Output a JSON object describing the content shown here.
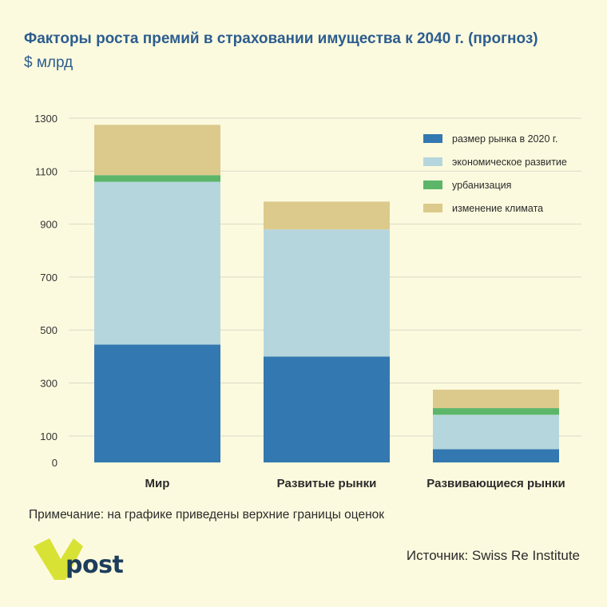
{
  "header": {
    "title": "Факторы роста премий в страховании имущества к 2040 г. (прогноз)",
    "subtitle": "$ млрд"
  },
  "colors": {
    "background": "#fcfade",
    "title": "#2c5d8f",
    "grid": "#d9d9c8"
  },
  "chart_data": {
    "type": "bar",
    "stacked": true,
    "categories": [
      "Мир",
      "Развитые рынки",
      "Развивающиеся рынки"
    ],
    "series": [
      {
        "name": "размер рынка в 2020 г.",
        "color": "#3378b1",
        "values": [
          445,
          400,
          50
        ]
      },
      {
        "name": "экономическое развитие",
        "color": "#b5d6dd",
        "values": [
          615,
          480,
          130
        ]
      },
      {
        "name": "урбанизация",
        "color": "#5cb66a",
        "values": [
          25,
          0,
          25
        ]
      },
      {
        "name": "изменение климата",
        "color": "#dcca8c",
        "values": [
          190,
          105,
          70
        ]
      }
    ],
    "yticks": [
      0,
      100,
      300,
      500,
      700,
      900,
      1100,
      1300
    ],
    "ylim": [
      0,
      1300
    ],
    "grid": true,
    "legend_position": "top-right"
  },
  "footer": {
    "note": "Примечание: на графике приведены верхние границы оценок",
    "source": "Источник: Swiss Re Institute",
    "logo_text": "post"
  }
}
